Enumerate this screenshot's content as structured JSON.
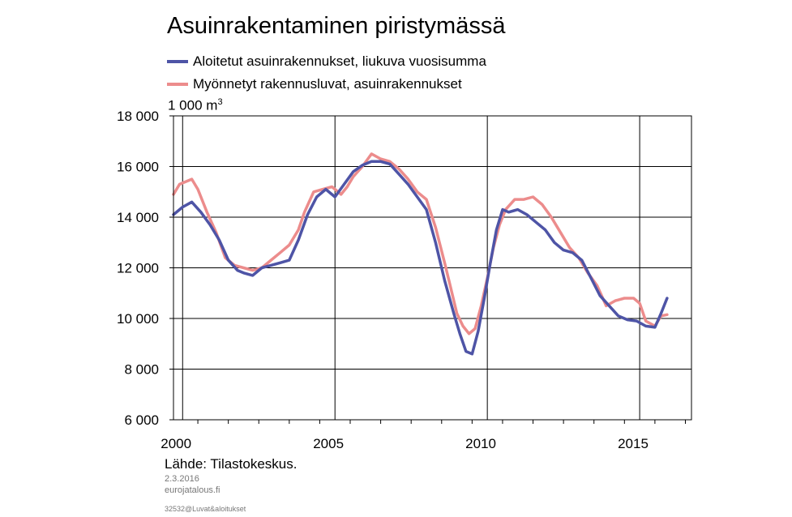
{
  "title": "Asuinrakentaminen piristymässä",
  "unit_base": "1 000 m",
  "unit_sup": "3",
  "source": "Lähde: Tilastokeskus.",
  "date": "2.3.2016",
  "site": "eurojatalous.fi",
  "file_ref": "32532@Luvat&aloitukset",
  "chart_data": {
    "type": "line",
    "title": "Asuinrakentaminen piristymässä",
    "ylabel": "1 000 m3",
    "xlim": [
      1999.7,
      2016.7
    ],
    "ylim": [
      6000,
      18000
    ],
    "y_ticks": [
      6000,
      8000,
      10000,
      12000,
      14000,
      16000,
      18000
    ],
    "y_tick_labels": [
      "6 000",
      "8 000",
      "10 000",
      "12 000",
      "14 000",
      "16 000",
      "18 000"
    ],
    "x_tick_labels": [
      {
        "year": 2000,
        "label": "2000"
      },
      {
        "year": 2005,
        "label": "2005"
      },
      {
        "year": 2010,
        "label": "2010"
      },
      {
        "year": 2015,
        "label": "2015"
      }
    ],
    "grid": true,
    "legend_position": "top",
    "series": [
      {
        "name": "Aloitetut asuinrakennukset, liukuva vuosisumma",
        "color": "#4e54a6",
        "x": [
          1999.7,
          2000.0,
          2000.3,
          2000.6,
          2000.9,
          2001.2,
          2001.5,
          2001.8,
          2002.0,
          2002.3,
          2002.6,
          2002.9,
          2003.2,
          2003.5,
          2003.8,
          2004.1,
          2004.4,
          2004.7,
          2005.0,
          2005.3,
          2005.6,
          2005.9,
          2006.2,
          2006.5,
          2006.8,
          2007.1,
          2007.4,
          2007.7,
          2008.0,
          2008.3,
          2008.6,
          2008.9,
          2009.1,
          2009.3,
          2009.5,
          2009.7,
          2009.9,
          2010.1,
          2010.3,
          2010.5,
          2010.7,
          2011.0,
          2011.3,
          2011.6,
          2011.9,
          2012.2,
          2012.5,
          2012.8,
          2013.1,
          2013.4,
          2013.7,
          2014.0,
          2014.3,
          2014.6,
          2014.9,
          2015.2,
          2015.5,
          2015.7,
          2015.9
        ],
        "values": [
          14100,
          14400,
          14600,
          14200,
          13700,
          13100,
          12300,
          11900,
          11800,
          11700,
          12000,
          12100,
          12200,
          12300,
          13100,
          14100,
          14800,
          15100,
          14800,
          15300,
          15800,
          16050,
          16200,
          16200,
          16100,
          15700,
          15300,
          14800,
          14300,
          13000,
          11500,
          10200,
          9400,
          8700,
          8600,
          9500,
          10800,
          12200,
          13500,
          14300,
          14200,
          14300,
          14100,
          13800,
          13500,
          13000,
          12700,
          12600,
          12300,
          11600,
          10900,
          10500,
          10100,
          9950,
          9900,
          9700,
          9650,
          10200,
          10800
        ]
      },
      {
        "name": "Myönnetyt rakennusluvat, asuinrakennukset",
        "color": "#ec8c8c",
        "x": [
          1999.7,
          1999.9,
          2000.1,
          2000.3,
          2000.5,
          2000.8,
          2001.1,
          2001.4,
          2001.7,
          2002.0,
          2002.3,
          2002.6,
          2002.9,
          2003.2,
          2003.5,
          2003.8,
          2004.0,
          2004.3,
          2004.6,
          2004.9,
          2005.2,
          2005.4,
          2005.6,
          2005.9,
          2006.2,
          2006.5,
          2006.8,
          2007.1,
          2007.4,
          2007.7,
          2008.0,
          2008.3,
          2008.6,
          2008.8,
          2009.0,
          2009.2,
          2009.4,
          2009.6,
          2009.8,
          2010.0,
          2010.2,
          2010.4,
          2010.6,
          2010.9,
          2011.2,
          2011.5,
          2011.8,
          2012.1,
          2012.4,
          2012.7,
          2013.0,
          2013.3,
          2013.6,
          2013.9,
          2014.2,
          2014.5,
          2014.8,
          2015.0,
          2015.2,
          2015.5,
          2015.7,
          2015.9
        ],
        "values": [
          14900,
          15300,
          15400,
          15500,
          15100,
          14200,
          13400,
          12400,
          12100,
          12000,
          11900,
          12000,
          12300,
          12600,
          12900,
          13500,
          14200,
          15000,
          15100,
          15200,
          14900,
          15200,
          15600,
          16000,
          16500,
          16300,
          16200,
          15900,
          15500,
          15000,
          14700,
          13600,
          12200,
          11200,
          10200,
          9700,
          9400,
          9600,
          10500,
          11600,
          12800,
          13700,
          14300,
          14700,
          14700,
          14800,
          14500,
          14000,
          13400,
          12800,
          12400,
          11800,
          11300,
          10500,
          10700,
          10800,
          10800,
          10600,
          9900,
          9700,
          10100,
          10150
        ]
      }
    ]
  }
}
